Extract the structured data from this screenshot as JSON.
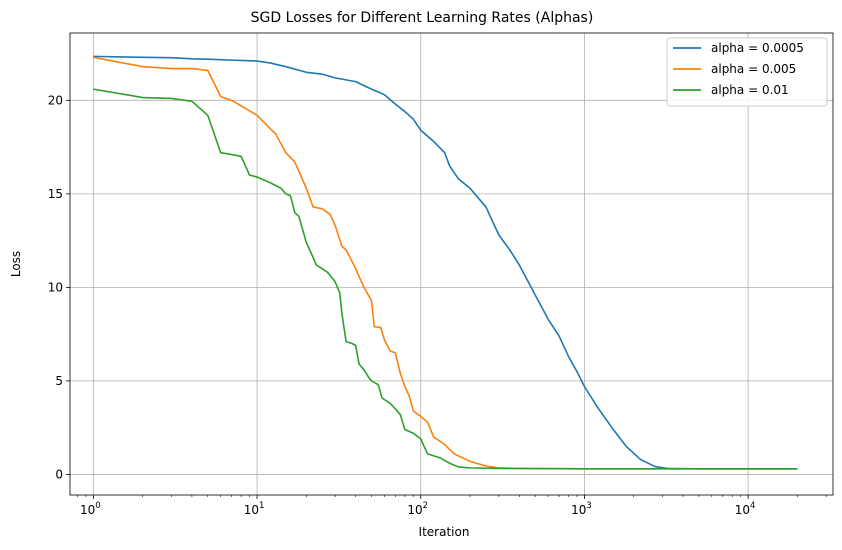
{
  "chart_data": {
    "type": "line",
    "title": "SGD Losses for Different Learning Rates (Alphas)",
    "xlabel": "Iteration",
    "ylabel": "Loss",
    "xscale": "log",
    "xlim": [
      0.72,
      33000
    ],
    "ylim": [
      -1.1,
      23.6
    ],
    "grid": true,
    "legend_position": "top-right",
    "x_ticks": [
      {
        "value": 1,
        "base": "10",
        "exp": "0"
      },
      {
        "value": 10,
        "base": "10",
        "exp": "1"
      },
      {
        "value": 100,
        "base": "10",
        "exp": "2"
      },
      {
        "value": 1000,
        "base": "10",
        "exp": "3"
      },
      {
        "value": 10000,
        "base": "10",
        "exp": "4"
      }
    ],
    "y_ticks": [
      {
        "value": 0,
        "label": "0"
      },
      {
        "value": 5,
        "label": "5"
      },
      {
        "value": 10,
        "label": "10"
      },
      {
        "value": 15,
        "label": "15"
      },
      {
        "value": 20,
        "label": "20"
      }
    ],
    "series": [
      {
        "name": "alpha = 0.0005",
        "color": "#1f77b4",
        "points": [
          [
            1,
            22.35
          ],
          [
            2,
            22.3
          ],
          [
            3,
            22.28
          ],
          [
            4,
            22.22
          ],
          [
            5,
            22.2
          ],
          [
            7,
            22.15
          ],
          [
            10,
            22.1
          ],
          [
            12,
            22.0
          ],
          [
            15,
            21.8
          ],
          [
            20,
            21.5
          ],
          [
            25,
            21.4
          ],
          [
            30,
            21.2
          ],
          [
            40,
            21.0
          ],
          [
            50,
            20.6
          ],
          [
            60,
            20.3
          ],
          [
            70,
            19.8
          ],
          [
            80,
            19.4
          ],
          [
            90,
            19.0
          ],
          [
            100,
            18.4
          ],
          [
            120,
            17.8
          ],
          [
            140,
            17.2
          ],
          [
            150,
            16.5
          ],
          [
            170,
            15.8
          ],
          [
            200,
            15.3
          ],
          [
            250,
            14.3
          ],
          [
            300,
            12.8
          ],
          [
            350,
            12.0
          ],
          [
            400,
            11.2
          ],
          [
            500,
            9.6
          ],
          [
            600,
            8.3
          ],
          [
            700,
            7.4
          ],
          [
            800,
            6.3
          ],
          [
            900,
            5.5
          ],
          [
            1000,
            4.7
          ],
          [
            1200,
            3.6
          ],
          [
            1500,
            2.4
          ],
          [
            1800,
            1.5
          ],
          [
            2200,
            0.8
          ],
          [
            2700,
            0.42
          ],
          [
            3200,
            0.32
          ],
          [
            5000,
            0.3
          ],
          [
            10000,
            0.3
          ],
          [
            20000,
            0.3
          ]
        ]
      },
      {
        "name": "alpha = 0.005",
        "color": "#ff7f0e",
        "points": [
          [
            1,
            22.3
          ],
          [
            2,
            21.8
          ],
          [
            3,
            21.7
          ],
          [
            4,
            21.7
          ],
          [
            5,
            21.6
          ],
          [
            6,
            20.2
          ],
          [
            7,
            20.0
          ],
          [
            8,
            19.7
          ],
          [
            10,
            19.2
          ],
          [
            12,
            18.5
          ],
          [
            13,
            18.2
          ],
          [
            15,
            17.2
          ],
          [
            17,
            16.7
          ],
          [
            20,
            15.3
          ],
          [
            22,
            14.3
          ],
          [
            25,
            14.2
          ],
          [
            28,
            13.9
          ],
          [
            30,
            13.3
          ],
          [
            33,
            12.2
          ],
          [
            35,
            12.0
          ],
          [
            38,
            11.4
          ],
          [
            40,
            11.0
          ],
          [
            45,
            10.0
          ],
          [
            50,
            9.3
          ],
          [
            52,
            7.9
          ],
          [
            57,
            7.85
          ],
          [
            60,
            7.2
          ],
          [
            65,
            6.6
          ],
          [
            70,
            6.5
          ],
          [
            75,
            5.4
          ],
          [
            80,
            4.7
          ],
          [
            85,
            4.2
          ],
          [
            90,
            3.4
          ],
          [
            100,
            3.1
          ],
          [
            110,
            2.8
          ],
          [
            120,
            2.0
          ],
          [
            140,
            1.6
          ],
          [
            160,
            1.1
          ],
          [
            200,
            0.7
          ],
          [
            250,
            0.45
          ],
          [
            300,
            0.35
          ],
          [
            400,
            0.32
          ],
          [
            1000,
            0.3
          ],
          [
            10000,
            0.3
          ],
          [
            20000,
            0.3
          ]
        ]
      },
      {
        "name": "alpha = 0.01",
        "color": "#2ca02c",
        "points": [
          [
            1,
            20.6
          ],
          [
            2,
            20.15
          ],
          [
            3,
            20.1
          ],
          [
            4,
            19.95
          ],
          [
            5,
            19.2
          ],
          [
            6,
            17.2
          ],
          [
            7,
            17.1
          ],
          [
            8,
            17.0
          ],
          [
            9,
            16.0
          ],
          [
            10,
            15.9
          ],
          [
            12,
            15.6
          ],
          [
            14,
            15.3
          ],
          [
            15,
            15.0
          ],
          [
            16,
            14.9
          ],
          [
            17,
            14.0
          ],
          [
            18,
            13.8
          ],
          [
            20,
            12.4
          ],
          [
            22,
            11.6
          ],
          [
            23,
            11.2
          ],
          [
            25,
            11.0
          ],
          [
            27,
            10.8
          ],
          [
            30,
            10.3
          ],
          [
            32,
            9.7
          ],
          [
            33,
            8.6
          ],
          [
            35,
            7.1
          ],
          [
            38,
            7.0
          ],
          [
            40,
            6.9
          ],
          [
            42,
            5.9
          ],
          [
            45,
            5.6
          ],
          [
            48,
            5.2
          ],
          [
            50,
            5.0
          ],
          [
            55,
            4.8
          ],
          [
            58,
            4.1
          ],
          [
            60,
            4.0
          ],
          [
            65,
            3.8
          ],
          [
            70,
            3.5
          ],
          [
            75,
            3.2
          ],
          [
            80,
            2.4
          ],
          [
            90,
            2.2
          ],
          [
            100,
            1.9
          ],
          [
            110,
            1.1
          ],
          [
            130,
            0.9
          ],
          [
            150,
            0.6
          ],
          [
            170,
            0.4
          ],
          [
            200,
            0.35
          ],
          [
            300,
            0.32
          ],
          [
            1000,
            0.3
          ],
          [
            10000,
            0.3
          ],
          [
            20000,
            0.3
          ]
        ]
      }
    ]
  }
}
